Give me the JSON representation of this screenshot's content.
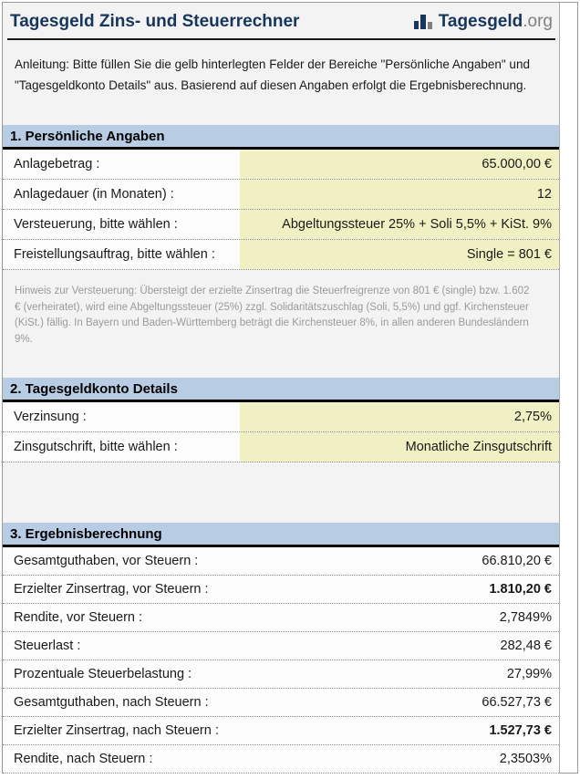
{
  "header": {
    "title": "Tagesgeld Zins- und Steuerrechner",
    "logo": {
      "name": "Tagesgeld",
      "tld": ".org"
    }
  },
  "instruction": "Anleitung: Bitte füllen Sie die gelb hinterlegten Felder der Bereiche \"Persönliche Angaben\" und \"Tagesgeldkonto Details\" aus. Basierend auf diesen Angaben erfolgt die Ergebnisberechnung.",
  "sections": {
    "personal": {
      "title": "1. Persönliche Angaben",
      "rows": [
        {
          "label": "Anlagebetrag :",
          "value": "65.000,00 €"
        },
        {
          "label": "Anlagedauer (in Monaten) :",
          "value": "12"
        },
        {
          "label": "Versteuerung, bitte wählen :",
          "value": "Abgeltungssteuer 25% + Soli 5,5% + KiSt. 9%"
        },
        {
          "label": "Freistellungsauftrag, bitte wählen :",
          "value": "Single = 801 €"
        }
      ],
      "hint": "Hinweis zur Versteuerung: Übersteigt der erzielte Zinsertrag die Steuerfreigrenze von 801 € (single) bzw. 1.602 € (verheiratet), wird eine Abgeltungssteuer (25%) zzgl. Solidaritätszuschlag (Soli, 5,5%) und ggf. Kirchensteuer (KiSt.) fällig. In Bayern und Baden-Württemberg beträgt die Kirchensteuer 8%, in allen anderen Bundesländern 9%."
    },
    "account": {
      "title": "2. Tagesgeldkonto Details",
      "rows": [
        {
          "label": "Verzinsung :",
          "value": "2,75%"
        },
        {
          "label": "Zinsgutschrift, bitte wählen :",
          "value": "Monatliche Zinsgutschrift"
        }
      ]
    },
    "results": {
      "title": "3. Ergebnisberechnung",
      "rows": [
        {
          "label": "Gesamtguthaben, vor Steuern :",
          "value": "66.810,20 €"
        },
        {
          "label": "Erzielter Zinsertrag, vor Steuern :",
          "value": "1.810,20 €"
        },
        {
          "label": "Rendite, vor Steuern :",
          "value": "2,7849%"
        },
        {
          "label": "Steuerlast :",
          "value": "282,48 €"
        },
        {
          "label": "Prozentuale Steuerbelastung :",
          "value": "27,99%"
        },
        {
          "label": "Gesamtguthaben, nach Steuern :",
          "value": "66.527,73 €"
        },
        {
          "label": "Erzielter Zinsertrag, nach Steuern :",
          "value": "1.527,73 €"
        },
        {
          "label": "Rendite, nach Steuern :",
          "value": "2,3503%"
        }
      ]
    }
  },
  "colors": {
    "brand_navy": "#17365d",
    "logo_gray": "#808080",
    "section_blue": "#b8cce4",
    "input_yellow": "#f0f0c2"
  }
}
